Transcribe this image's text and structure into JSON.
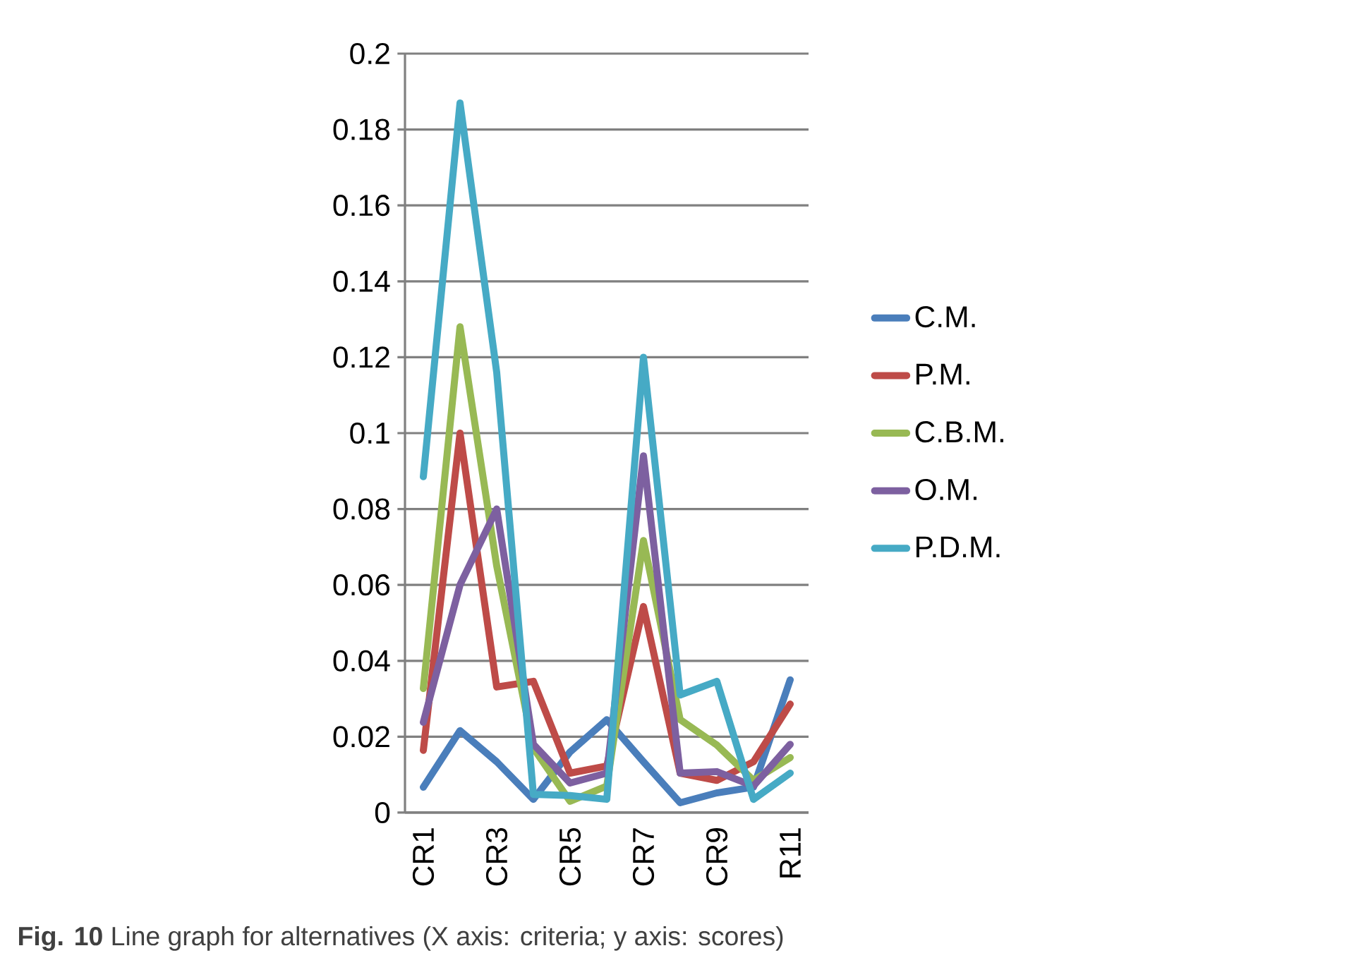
{
  "chart_data": {
    "type": "line",
    "categories": [
      "CR1",
      null,
      "CR3",
      null,
      "CR5",
      null,
      "CR7",
      null,
      "CR9",
      null,
      "R11"
    ],
    "series": [
      {
        "name": "C.M.",
        "color": "#4a7ebb",
        "values": [
          0.0067,
          0.0216,
          0.0134,
          0.0035,
          0.016,
          0.0245,
          0.0134,
          0.0026,
          0.0052,
          0.0067,
          0.035
        ]
      },
      {
        "name": "P.M.",
        "color": "#be4b48",
        "values": [
          0.0164,
          0.1,
          0.0331,
          0.0346,
          0.0104,
          0.0123,
          0.0543,
          0.0104,
          0.0085,
          0.0134,
          0.0286
        ]
      },
      {
        "name": "C.B.M.",
        "color": "#98b954",
        "values": [
          0.0327,
          0.128,
          0.065,
          0.017,
          0.003,
          0.007,
          0.0717,
          0.0245,
          0.0178,
          0.0085,
          0.0145
        ]
      },
      {
        "name": "O.M.",
        "color": "#7d60a0",
        "values": [
          0.0238,
          0.06,
          0.08,
          0.018,
          0.0078,
          0.0104,
          0.094,
          0.0104,
          0.0108,
          0.007,
          0.018
        ]
      },
      {
        "name": "P.D.M.",
        "color": "#46aac5",
        "values": [
          0.0885,
          0.187,
          0.116,
          0.0048,
          0.0045,
          0.0035,
          0.12,
          0.031,
          0.0346,
          0.0035,
          0.0104
        ]
      }
    ],
    "ylim": [
      0,
      0.2
    ],
    "yticks": [
      0,
      0.02,
      0.04,
      0.06,
      0.08,
      0.1,
      0.12,
      0.14,
      0.16,
      0.18,
      0.2
    ],
    "grid": "y",
    "legend": "right",
    "marker": "none",
    "line_style": "solid",
    "annotations": [
      "**Fig. 10** Line graph for alternatives (X axis: criteria; y axis: scores)"
    ]
  }
}
